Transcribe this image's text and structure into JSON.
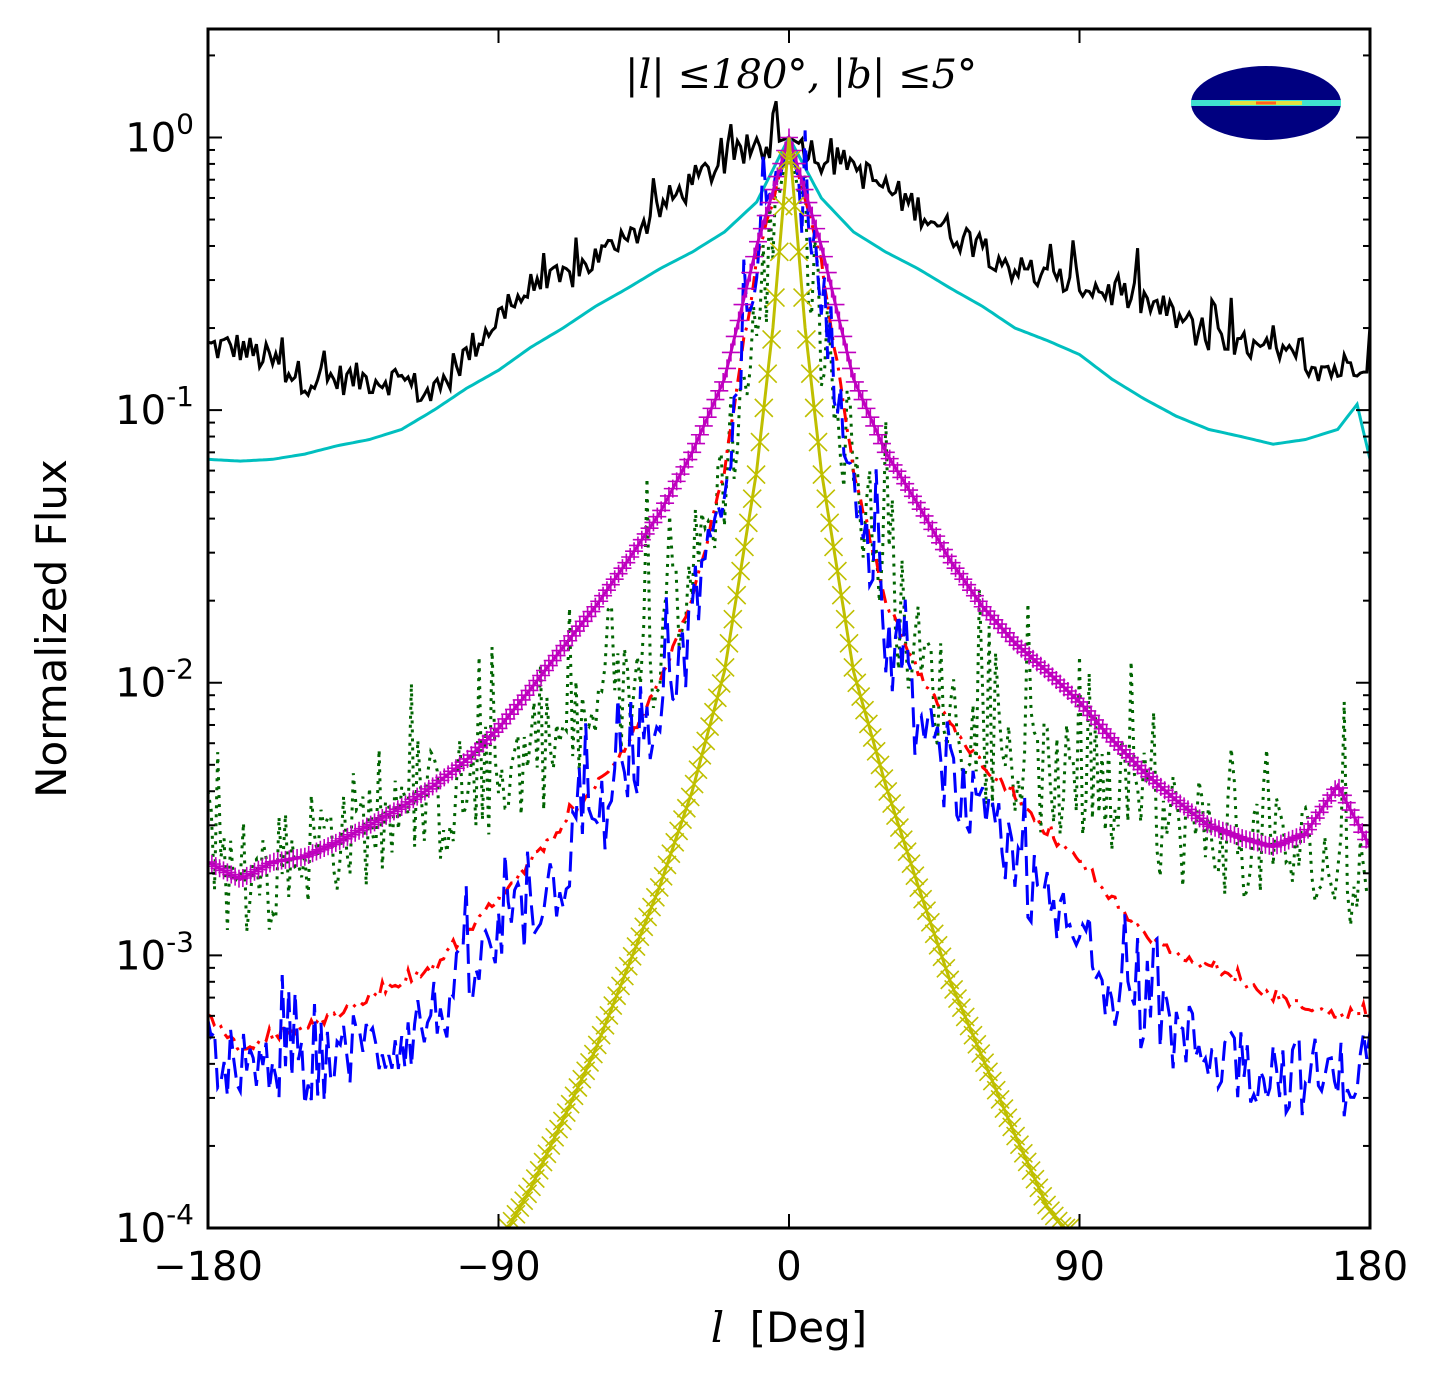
{
  "chart_data": {
    "type": "line",
    "title": "|l| ≤180°, |b| ≤5°",
    "xlabel_var": "l",
    "xlabel_unit": "[Deg]",
    "ylabel": "Normalized Flux",
    "xlim": [
      -180,
      180
    ],
    "ylim": [
      0.0001,
      2.5
    ],
    "yscale": "log",
    "grid": false,
    "x_ticks": [
      -180,
      -90,
      0,
      90,
      180
    ],
    "x_tick_labels": [
      "−180",
      "−90",
      "0",
      "90",
      "180"
    ],
    "y_ticks": [
      {
        "value": 1,
        "base": "10",
        "exp": "0"
      },
      {
        "value": 0.1,
        "base": "10",
        "exp": "-1"
      },
      {
        "value": 0.01,
        "base": "10",
        "exp": "-2"
      },
      {
        "value": 0.001,
        "base": "10",
        "exp": "-3"
      },
      {
        "value": 0.0001,
        "base": "10",
        "exp": "-4"
      }
    ],
    "inset": "all-sky map (Mollweide) with bright Galactic plane band",
    "series": [
      {
        "color": "#000000",
        "style": "solid",
        "marker": "none",
        "noise": 0.12,
        "x": [
          -180,
          -170,
          -160,
          -150,
          -140,
          -130,
          -120,
          -110,
          -100,
          -90,
          -80,
          -70,
          -60,
          -50,
          -40,
          -30,
          -20,
          -10,
          0,
          10,
          20,
          30,
          40,
          50,
          60,
          70,
          80,
          90,
          100,
          110,
          120,
          130,
          140,
          150,
          160,
          170,
          180
        ],
        "y": [
          0.17,
          0.17,
          0.15,
          0.13,
          0.13,
          0.13,
          0.13,
          0.11,
          0.16,
          0.22,
          0.28,
          0.3,
          0.36,
          0.42,
          0.55,
          0.68,
          0.82,
          0.9,
          1.0,
          0.85,
          0.78,
          0.65,
          0.55,
          0.45,
          0.4,
          0.33,
          0.3,
          0.29,
          0.27,
          0.25,
          0.22,
          0.18,
          0.17,
          0.16,
          0.15,
          0.14,
          0.16
        ]
      },
      {
        "color": "#00bfbf",
        "style": "solid",
        "marker": "none",
        "noise": 0,
        "x": [
          -180,
          -170,
          -160,
          -150,
          -140,
          -130,
          -120,
          -110,
          -100,
          -90,
          -80,
          -70,
          -60,
          -50,
          -40,
          -30,
          -20,
          -10,
          0,
          10,
          20,
          30,
          40,
          50,
          60,
          70,
          80,
          90,
          100,
          110,
          120,
          130,
          140,
          150,
          160,
          170,
          176,
          180
        ],
        "y": [
          0.066,
          0.065,
          0.066,
          0.069,
          0.074,
          0.078,
          0.085,
          0.1,
          0.12,
          0.14,
          0.17,
          0.2,
          0.24,
          0.28,
          0.33,
          0.38,
          0.45,
          0.58,
          1.0,
          0.6,
          0.45,
          0.38,
          0.33,
          0.28,
          0.24,
          0.2,
          0.18,
          0.16,
          0.13,
          0.11,
          0.095,
          0.085,
          0.08,
          0.075,
          0.078,
          0.085,
          0.105,
          0.066
        ]
      },
      {
        "color": "#006400",
        "style": "dotted",
        "marker": "none",
        "noise": 0.45,
        "x": [
          -180,
          -170,
          -160,
          -150,
          -140,
          -130,
          -120,
          -110,
          -100,
          -90,
          -80,
          -70,
          -60,
          -50,
          -40,
          -30,
          -20,
          -10,
          0,
          10,
          20,
          30,
          40,
          50,
          60,
          70,
          80,
          90,
          100,
          110,
          120,
          130,
          140,
          150,
          160,
          170,
          180
        ],
        "y": [
          0.003,
          0.0015,
          0.002,
          0.0025,
          0.0028,
          0.003,
          0.0032,
          0.0035,
          0.004,
          0.0045,
          0.0055,
          0.006,
          0.007,
          0.009,
          0.015,
          0.025,
          0.06,
          0.2,
          1.0,
          0.2,
          0.06,
          0.025,
          0.012,
          0.008,
          0.006,
          0.005,
          0.0045,
          0.004,
          0.0035,
          0.0033,
          0.003,
          0.0028,
          0.0027,
          0.0025,
          0.0023,
          0.002,
          0.002
        ]
      },
      {
        "color": "#ff0000",
        "style": "dashdot",
        "marker": "none",
        "noise": 0.03,
        "x": [
          -180,
          -170,
          -160,
          -150,
          -140,
          -130,
          -120,
          -110,
          -100,
          -90,
          -80,
          -70,
          -60,
          -50,
          -40,
          -30,
          -20,
          -10,
          0,
          10,
          20,
          30,
          40,
          50,
          60,
          70,
          80,
          90,
          100,
          110,
          120,
          130,
          140,
          150,
          160,
          170,
          180
        ],
        "y": [
          0.0006,
          0.00045,
          0.0005,
          0.00055,
          0.0006,
          0.0007,
          0.0008,
          0.0009,
          0.0012,
          0.0016,
          0.0022,
          0.003,
          0.0042,
          0.006,
          0.01,
          0.02,
          0.06,
          0.35,
          1.0,
          0.35,
          0.06,
          0.02,
          0.011,
          0.007,
          0.005,
          0.0038,
          0.0028,
          0.0022,
          0.0016,
          0.0012,
          0.001,
          0.0009,
          0.0008,
          0.0007,
          0.00065,
          0.0006,
          0.0006
        ]
      },
      {
        "color": "#0000ff",
        "style": "dashed",
        "marker": "none",
        "noise": 0.3,
        "x": [
          -180,
          -170,
          -160,
          -150,
          -140,
          -130,
          -120,
          -110,
          -100,
          -90,
          -80,
          -70,
          -60,
          -50,
          -40,
          -30,
          -20,
          -10,
          0,
          10,
          20,
          30,
          40,
          50,
          60,
          70,
          80,
          90,
          100,
          110,
          120,
          130,
          140,
          150,
          160,
          170,
          180
        ],
        "y": [
          0.0005,
          0.00035,
          0.00035,
          0.0004,
          0.00042,
          0.00045,
          0.0005,
          0.0006,
          0.0008,
          0.0011,
          0.0015,
          0.002,
          0.003,
          0.0045,
          0.007,
          0.015,
          0.05,
          0.3,
          1.0,
          0.3,
          0.05,
          0.014,
          0.007,
          0.0045,
          0.003,
          0.002,
          0.0015,
          0.0011,
          0.0008,
          0.0006,
          0.0005,
          0.00045,
          0.0004,
          0.00038,
          0.00036,
          0.00035,
          0.0004
        ]
      },
      {
        "color": "#bf00bf",
        "style": "solid",
        "marker": "plus",
        "noise": 0,
        "x": [
          -180,
          -170,
          -160,
          -150,
          -140,
          -130,
          -120,
          -110,
          -100,
          -90,
          -80,
          -70,
          -60,
          -50,
          -40,
          -30,
          -20,
          -10,
          0,
          10,
          20,
          30,
          40,
          50,
          60,
          70,
          80,
          90,
          100,
          110,
          120,
          130,
          140,
          150,
          160,
          170,
          180
        ],
        "y": [
          0.0022,
          0.0019,
          0.0022,
          0.0023,
          0.0026,
          0.003,
          0.0035,
          0.0042,
          0.0052,
          0.0068,
          0.0095,
          0.0135,
          0.019,
          0.028,
          0.042,
          0.07,
          0.13,
          0.4,
          1.0,
          0.4,
          0.13,
          0.07,
          0.045,
          0.028,
          0.019,
          0.014,
          0.011,
          0.0085,
          0.0062,
          0.0047,
          0.0037,
          0.003,
          0.0027,
          0.0025,
          0.0028,
          0.0042,
          0.0025
        ]
      },
      {
        "color": "#bfbf00",
        "style": "solid",
        "marker": "x",
        "noise": 0,
        "x": [
          -87,
          -80,
          -70,
          -60,
          -50,
          -40,
          -30,
          -20,
          -10,
          -5,
          0,
          5,
          10,
          20,
          30,
          40,
          50,
          60,
          70,
          80,
          85,
          88
        ],
        "y": [
          0.0001,
          0.00014,
          0.00025,
          0.00045,
          0.0009,
          0.0018,
          0.004,
          0.011,
          0.06,
          0.2,
          1.0,
          0.2,
          0.06,
          0.011,
          0.0042,
          0.0018,
          0.0008,
          0.00042,
          0.00022,
          0.00012,
          0.0001,
          0.0001
        ]
      }
    ]
  }
}
